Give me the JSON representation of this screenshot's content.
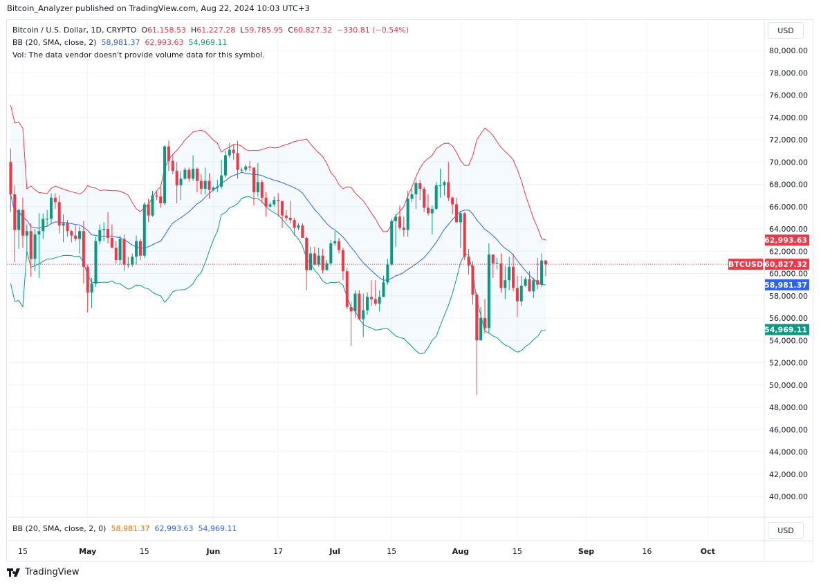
{
  "header": {
    "published": "Bitcoin_Analyzer published on TradingView.com, Aug 22, 2024 10:03 UTC+3"
  },
  "legend": {
    "symbol": "Bitcoin / U.S. Dollar, 1D, CRYPTO",
    "o_label": "O",
    "o": "61,158.53",
    "h_label": "H",
    "h": "61,227.28",
    "l_label": "L",
    "l": "59,785.95",
    "c_label": "C",
    "c": "60,827.32",
    "change": "−330.81 (−0.54%)",
    "bb_label": "BB (20, SMA, close, 2)",
    "bb_mid": "58,981.37",
    "bb_upper": "62,993.63",
    "bb_lower": "54,969.11",
    "vol": "Vol: The data vendor doesn't provide volume data for this symbol."
  },
  "indicator_pane": {
    "label": "BB (20, SMA, close, 2, 0)",
    "v1": "58,981.37",
    "v2": "62,993.63",
    "v3": "54,969.11",
    "currency": "USD"
  },
  "currency": "USD",
  "footer": {
    "brand": "TradingView"
  },
  "colors": {
    "up": "#089981",
    "down": "#f23645",
    "upper": "#f23645",
    "mid": "#2962ff",
    "lower": "#089981",
    "fill": "#2196f3"
  },
  "chart_data": {
    "type": "candlestick",
    "symbol": "BTCUSD",
    "ylim": [
      40000,
      80000
    ],
    "y_ticks": [
      "80,000.00",
      "78,000.00",
      "76,000.00",
      "74,000.00",
      "72,000.00",
      "70,000.00",
      "68,000.00",
      "66,000.00",
      "64,000.00",
      "62,000.00",
      "60,000.00",
      "58,000.00",
      "56,000.00",
      "54,000.00",
      "52,000.00",
      "50,000.00",
      "48,000.00",
      "46,000.00",
      "44,000.00",
      "42,000.00",
      "40,000.00"
    ],
    "x_ticks": [
      [
        "15",
        "2024-04-15"
      ],
      [
        "May",
        "2024-05-01"
      ],
      [
        "15",
        "2024-05-15"
      ],
      [
        "Jun",
        "2024-06-01"
      ],
      [
        "17",
        "2024-06-17"
      ],
      [
        "Jul",
        "2024-07-01"
      ],
      [
        "15",
        "2024-07-15"
      ],
      [
        "Aug",
        "2024-08-01"
      ],
      [
        "15",
        "2024-08-15"
      ],
      [
        "Sep",
        "2024-09-01"
      ],
      [
        "16",
        "2024-09-16"
      ],
      [
        "Oct",
        "2024-10-01"
      ]
    ],
    "price_labels": {
      "last": {
        "value": 60827.32,
        "text": "60,827.32",
        "tag": "BTCUSD"
      },
      "upper": {
        "value": 62993.63,
        "text": "62,993.63"
      },
      "mid": {
        "value": 58981.37,
        "text": "58,981.37"
      },
      "lower": {
        "value": 54969.11,
        "text": "54,969.11"
      }
    },
    "bollinger": {
      "period": 20,
      "type": "SMA",
      "source": "close",
      "stddev": 2
    },
    "candles": [
      [
        "2024-04-12",
        70000,
        71200,
        65500,
        67100
      ],
      [
        "2024-04-13",
        67100,
        67900,
        61000,
        63900
      ],
      [
        "2024-04-14",
        63900,
        65800,
        62200,
        65700
      ],
      [
        "2024-04-15",
        65700,
        66800,
        62300,
        63400
      ],
      [
        "2024-04-16",
        63400,
        64400,
        61800,
        63800
      ],
      [
        "2024-04-17",
        63800,
        64500,
        59700,
        61300
      ],
      [
        "2024-04-18",
        61300,
        64000,
        60200,
        63500
      ],
      [
        "2024-04-19",
        63500,
        65400,
        59600,
        63800
      ],
      [
        "2024-04-20",
        63800,
        65400,
        63100,
        64900
      ],
      [
        "2024-04-21",
        64900,
        65700,
        64200,
        64900
      ],
      [
        "2024-04-22",
        64900,
        67200,
        64500,
        66800
      ],
      [
        "2024-04-23",
        66800,
        67200,
        65800,
        66400
      ],
      [
        "2024-04-24",
        66400,
        67000,
        63600,
        64300
      ],
      [
        "2024-04-25",
        64300,
        65300,
        62800,
        64500
      ],
      [
        "2024-04-26",
        64500,
        64800,
        63300,
        63800
      ],
      [
        "2024-04-27",
        63800,
        63900,
        62800,
        63400
      ],
      [
        "2024-04-28",
        63400,
        64300,
        62900,
        63100
      ],
      [
        "2024-04-29",
        63100,
        64200,
        61800,
        63800
      ],
      [
        "2024-04-30",
        63800,
        64700,
        59100,
        60600
      ],
      [
        "2024-05-01",
        60600,
        60800,
        56500,
        58300
      ],
      [
        "2024-05-02",
        58300,
        59600,
        56900,
        59100
      ],
      [
        "2024-05-03",
        59100,
        63300,
        58800,
        62900
      ],
      [
        "2024-05-04",
        62900,
        64400,
        62600,
        63900
      ],
      [
        "2024-05-05",
        63900,
        64600,
        62900,
        64000
      ],
      [
        "2024-05-06",
        64000,
        65500,
        62700,
        63200
      ],
      [
        "2024-05-07",
        63200,
        64400,
        62300,
        62300
      ],
      [
        "2024-05-08",
        62300,
        62900,
        60900,
        61200
      ],
      [
        "2024-05-09",
        61200,
        63400,
        60800,
        63100
      ],
      [
        "2024-05-10",
        63100,
        63500,
        60200,
        60800
      ],
      [
        "2024-05-11",
        60800,
        61500,
        60500,
        60800
      ],
      [
        "2024-05-12",
        60800,
        61800,
        60600,
        61500
      ],
      [
        "2024-05-13",
        61500,
        63400,
        60800,
        62900
      ],
      [
        "2024-05-14",
        62900,
        63100,
        61200,
        61600
      ],
      [
        "2024-05-15",
        61600,
        66400,
        61400,
        66200
      ],
      [
        "2024-05-16",
        66200,
        66700,
        64600,
        65200
      ],
      [
        "2024-05-17",
        65200,
        67400,
        65100,
        67000
      ],
      [
        "2024-05-18",
        67000,
        67400,
        66600,
        66900
      ],
      [
        "2024-05-19",
        66900,
        67700,
        65900,
        66300
      ],
      [
        "2024-05-20",
        66300,
        71500,
        66100,
        71400
      ],
      [
        "2024-05-21",
        71400,
        71900,
        69200,
        70100
      ],
      [
        "2024-05-22",
        70100,
        70600,
        68900,
        69200
      ],
      [
        "2024-05-23",
        69200,
        70000,
        66300,
        67900
      ],
      [
        "2024-05-24",
        67900,
        69200,
        66600,
        68500
      ],
      [
        "2024-05-25",
        68500,
        69500,
        68400,
        69300
      ],
      [
        "2024-05-26",
        69300,
        69500,
        68200,
        68500
      ],
      [
        "2024-05-27",
        68500,
        70600,
        68300,
        69400
      ],
      [
        "2024-05-28",
        69400,
        69500,
        67300,
        68300
      ],
      [
        "2024-05-29",
        68300,
        68900,
        67100,
        67600
      ],
      [
        "2024-05-30",
        67600,
        69500,
        67100,
        68300
      ],
      [
        "2024-05-31",
        68300,
        69000,
        66700,
        67500
      ],
      [
        "2024-06-01",
        67500,
        67800,
        67400,
        67700
      ],
      [
        "2024-06-02",
        67700,
        68400,
        67300,
        67800
      ],
      [
        "2024-06-03",
        67800,
        70200,
        67600,
        68800
      ],
      [
        "2024-06-04",
        68800,
        71000,
        68600,
        70600
      ],
      [
        "2024-06-05",
        70600,
        71700,
        70400,
        71100
      ],
      [
        "2024-06-06",
        71100,
        71600,
        70200,
        70800
      ],
      [
        "2024-06-07",
        70800,
        71900,
        68500,
        69300
      ],
      [
        "2024-06-08",
        69300,
        69500,
        69100,
        69300
      ],
      [
        "2024-06-09",
        69300,
        69800,
        69100,
        69600
      ],
      [
        "2024-06-10",
        69600,
        70100,
        69200,
        69500
      ],
      [
        "2024-06-11",
        69500,
        69500,
        66100,
        67300
      ],
      [
        "2024-06-12",
        67300,
        69900,
        66900,
        68200
      ],
      [
        "2024-06-13",
        68200,
        68400,
        66300,
        66800
      ],
      [
        "2024-06-14",
        66800,
        67300,
        65100,
        66000
      ],
      [
        "2024-06-15",
        66000,
        66400,
        65900,
        66200
      ],
      [
        "2024-06-16",
        66200,
        66900,
        66000,
        66600
      ],
      [
        "2024-06-17",
        66600,
        67200,
        65100,
        66500
      ],
      [
        "2024-06-18",
        66500,
        66500,
        64100,
        65200
      ],
      [
        "2024-06-19",
        65200,
        65700,
        64700,
        65000
      ],
      [
        "2024-06-20",
        65000,
        66500,
        64500,
        64800
      ],
      [
        "2024-06-21",
        64800,
        65000,
        63400,
        64100
      ],
      [
        "2024-06-22",
        64100,
        64500,
        63900,
        64300
      ],
      [
        "2024-06-23",
        64300,
        64500,
        63300,
        63200
      ],
      [
        "2024-06-24",
        63200,
        63300,
        58500,
        60300
      ],
      [
        "2024-06-25",
        60300,
        62400,
        60300,
        61800
      ],
      [
        "2024-06-26",
        61800,
        62400,
        60700,
        60800
      ],
      [
        "2024-06-27",
        60800,
        62300,
        60600,
        61600
      ],
      [
        "2024-06-28",
        61600,
        62200,
        60000,
        60300
      ],
      [
        "2024-06-29",
        60300,
        61200,
        60300,
        60900
      ],
      [
        "2024-06-30",
        60900,
        63000,
        60700,
        62700
      ],
      [
        "2024-07-01",
        62700,
        63800,
        62500,
        62900
      ],
      [
        "2024-07-02",
        62900,
        63200,
        61800,
        62100
      ],
      [
        "2024-07-03",
        62100,
        62300,
        59400,
        60200
      ],
      [
        "2024-07-04",
        60200,
        60500,
        56800,
        57000
      ],
      [
        "2024-07-05",
        57000,
        57500,
        53500,
        56600
      ],
      [
        "2024-07-06",
        56600,
        58500,
        56000,
        58200
      ],
      [
        "2024-07-07",
        58200,
        58500,
        55800,
        55900
      ],
      [
        "2024-07-08",
        55900,
        58200,
        54300,
        56700
      ],
      [
        "2024-07-09",
        56700,
        58300,
        56300,
        57900
      ],
      [
        "2024-07-10",
        57900,
        59400,
        57100,
        57700
      ],
      [
        "2024-07-11",
        57700,
        59400,
        57100,
        57300
      ],
      [
        "2024-07-12",
        57300,
        58500,
        56600,
        57900
      ],
      [
        "2024-07-13",
        57900,
        59800,
        57900,
        59200
      ],
      [
        "2024-07-14",
        59200,
        61300,
        59000,
        60800
      ],
      [
        "2024-07-15",
        60800,
        64900,
        60700,
        64700
      ],
      [
        "2024-07-16",
        64700,
        65300,
        62400,
        65100
      ],
      [
        "2024-07-17",
        65100,
        66100,
        63900,
        64100
      ],
      [
        "2024-07-18",
        64100,
        65100,
        63300,
        63900
      ],
      [
        "2024-07-19",
        63900,
        67400,
        63300,
        66700
      ],
      [
        "2024-07-20",
        66700,
        67600,
        66400,
        67100
      ],
      [
        "2024-07-21",
        67100,
        68300,
        65800,
        68100
      ],
      [
        "2024-07-22",
        68100,
        68400,
        66600,
        67600
      ],
      [
        "2024-07-23",
        67600,
        67800,
        65500,
        65900
      ],
      [
        "2024-07-24",
        65900,
        67100,
        65200,
        65400
      ],
      [
        "2024-07-25",
        65400,
        66100,
        63500,
        65800
      ],
      [
        "2024-07-26",
        65800,
        68200,
        65700,
        67900
      ],
      [
        "2024-07-27",
        67900,
        69400,
        66800,
        67900
      ],
      [
        "2024-07-28",
        67900,
        68300,
        67000,
        68200
      ],
      [
        "2024-07-29",
        68200,
        70000,
        66500,
        66800
      ],
      [
        "2024-07-30",
        66800,
        66900,
        65300,
        66200
      ],
      [
        "2024-07-31",
        66200,
        66800,
        64600,
        64600
      ],
      [
        "2024-08-01",
        64600,
        65600,
        62300,
        65400
      ],
      [
        "2024-08-02",
        65400,
        65500,
        61200,
        61500
      ],
      [
        "2024-08-03",
        61500,
        62200,
        59900,
        60700
      ],
      [
        "2024-08-04",
        60700,
        61100,
        57200,
        58100
      ],
      [
        "2024-08-05",
        58100,
        58300,
        49100,
        54000
      ],
      [
        "2024-08-06",
        54000,
        57000,
        54000,
        56000
      ],
      [
        "2024-08-07",
        56000,
        57700,
        54600,
        55100
      ],
      [
        "2024-08-08",
        55100,
        62700,
        54700,
        61700
      ],
      [
        "2024-08-09",
        61700,
        61700,
        59600,
        60900
      ],
      [
        "2024-08-10",
        60900,
        61400,
        60400,
        60900
      ],
      [
        "2024-08-11",
        60900,
        61800,
        58300,
        58700
      ],
      [
        "2024-08-12",
        58700,
        60700,
        57700,
        59400
      ],
      [
        "2024-08-13",
        59400,
        61500,
        58500,
        60600
      ],
      [
        "2024-08-14",
        60600,
        61800,
        58400,
        58700
      ],
      [
        "2024-08-15",
        58700,
        59800,
        56100,
        57500
      ],
      [
        "2024-08-16",
        57500,
        59800,
        57100,
        58900
      ],
      [
        "2024-08-17",
        58900,
        59700,
        58800,
        59500
      ],
      [
        "2024-08-18",
        59500,
        60200,
        58400,
        58400
      ],
      [
        "2024-08-19",
        58400,
        59600,
        57800,
        59400
      ],
      [
        "2024-08-20",
        59400,
        61400,
        58600,
        59000
      ],
      [
        "2024-08-21",
        59000,
        61800,
        58800,
        61158
      ],
      [
        "2024-08-22",
        61158.53,
        61227.28,
        59785.95,
        60827.32
      ]
    ]
  }
}
